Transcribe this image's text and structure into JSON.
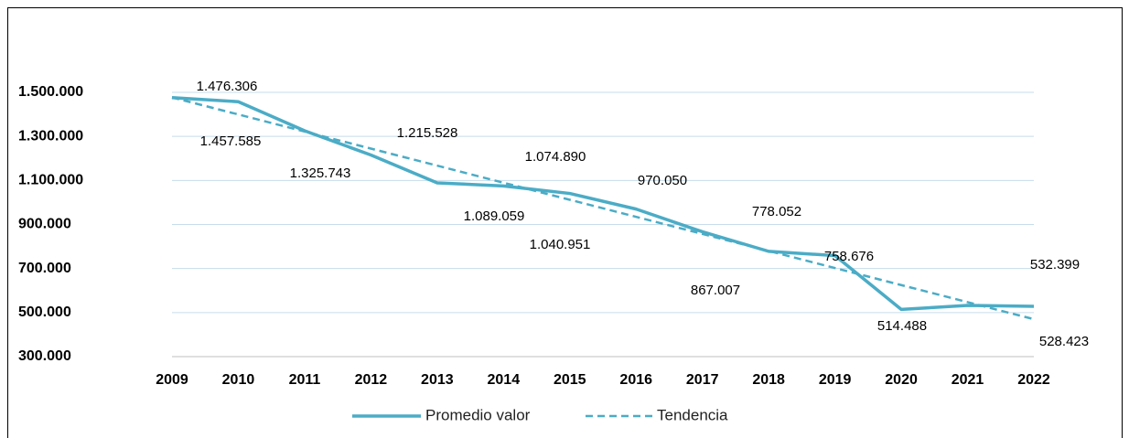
{
  "chart_data": {
    "type": "line",
    "categories": [
      "2009",
      "2010",
      "2011",
      "2012",
      "2013",
      "2014",
      "2015",
      "2016",
      "2017",
      "2018",
      "2019",
      "2020",
      "2021",
      "2022"
    ],
    "series": [
      {
        "name": "Promedio valor",
        "color": "#4bacc6",
        "values": [
          1476306,
          1457585,
          1325743,
          1215528,
          1089059,
          1074890,
          1040951,
          970050,
          867007,
          778052,
          758676,
          514488,
          532399,
          528423
        ],
        "value_labels": [
          "1.476.306",
          "1.457.585",
          "1.325.743",
          "1.215.528",
          "1.089.059",
          "1.074.890",
          "1.040.951",
          "970.050",
          "867.007",
          "778.052",
          "758.676",
          "514.488",
          "532.399",
          "528.423"
        ]
      }
    ],
    "trendline": {
      "name": "Tendencia",
      "type": "linear",
      "color": "#4bacc6"
    },
    "ylim": [
      300000,
      1500000
    ],
    "yticks": [
      {
        "value": 300000,
        "label": "300.000"
      },
      {
        "value": 500000,
        "label": "500.000"
      },
      {
        "value": 700000,
        "label": "700.000"
      },
      {
        "value": 900000,
        "label": "900.000"
      },
      {
        "value": 1100000,
        "label": "1.100.000"
      },
      {
        "value": 1300000,
        "label": "1.300.000"
      },
      {
        "value": 1500000,
        "label": "1.500.000"
      }
    ],
    "grid": true
  }
}
